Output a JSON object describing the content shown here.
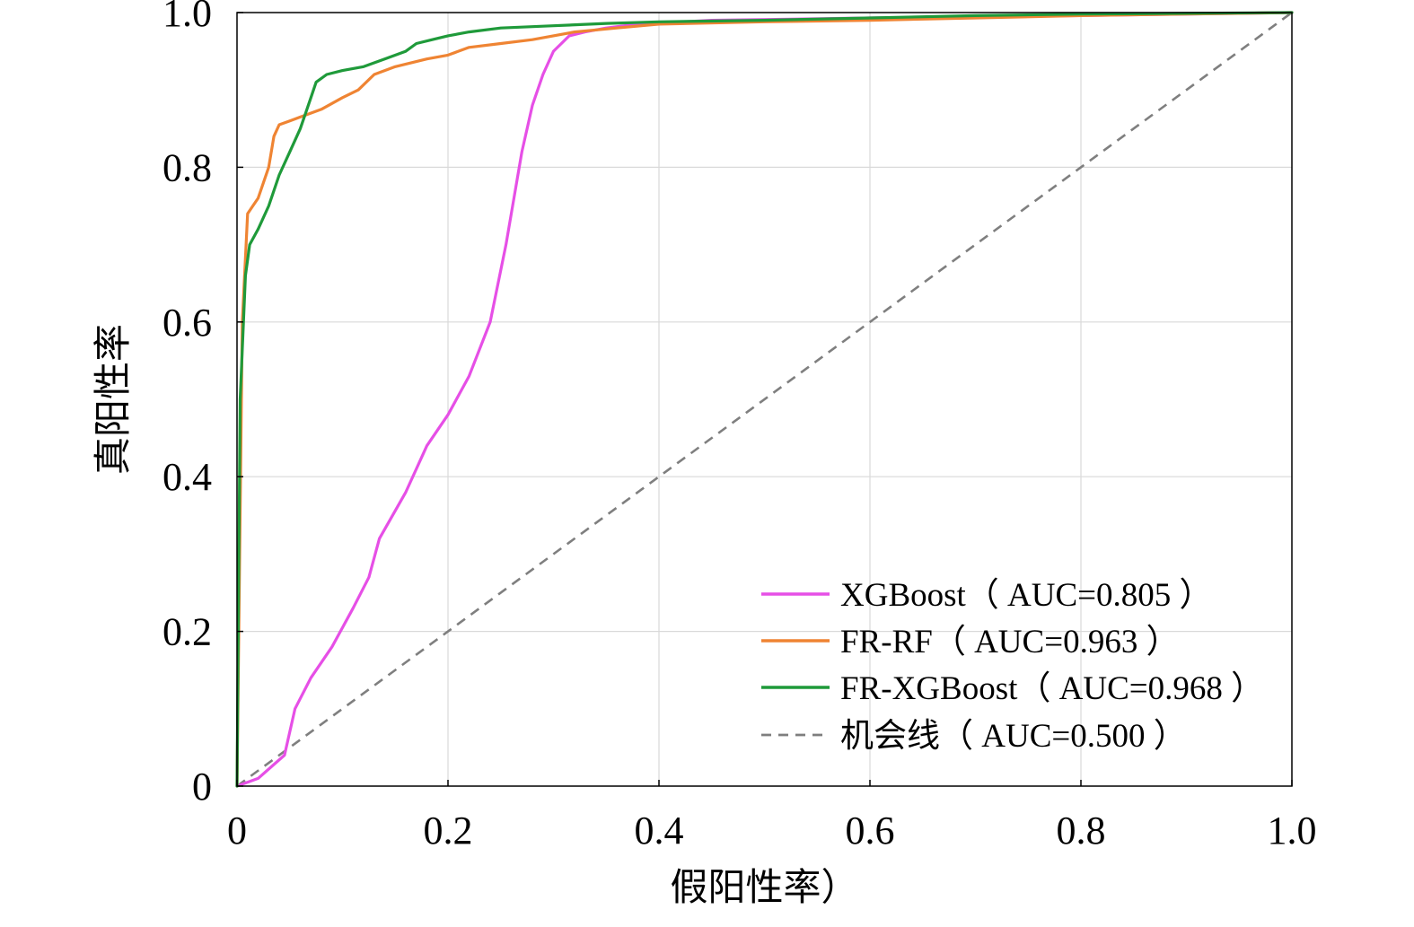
{
  "chart_data": {
    "type": "line",
    "xlabel": "假阳性率）",
    "ylabel": "真阳性率",
    "xlim": [
      0,
      1.0
    ],
    "ylim": [
      0,
      1.0
    ],
    "x_ticks": [
      0,
      0.2,
      0.4,
      0.6,
      0.8,
      1.0
    ],
    "y_ticks": [
      0,
      0.2,
      0.4,
      0.6,
      0.8,
      1.0
    ],
    "x_tick_labels": [
      "0",
      "0.2",
      "0.4",
      "0.6",
      "0.8",
      "1.0"
    ],
    "y_tick_labels": [
      "0",
      "0.2",
      "0.4",
      "0.6",
      "0.8",
      "1.0"
    ],
    "grid": true,
    "legend_position": "bottom-right",
    "series": [
      {
        "name": "XGBoost（ AUC=0.805 ）",
        "color": "#e64fe6",
        "dash": "solid",
        "x": [
          0,
          0.02,
          0.045,
          0.055,
          0.07,
          0.09,
          0.11,
          0.125,
          0.135,
          0.16,
          0.18,
          0.2,
          0.22,
          0.24,
          0.255,
          0.265,
          0.27,
          0.28,
          0.29,
          0.3,
          0.315,
          0.33,
          0.35,
          0.38,
          0.45,
          0.6,
          0.8,
          1.0
        ],
        "y": [
          0,
          0.01,
          0.04,
          0.1,
          0.14,
          0.18,
          0.23,
          0.27,
          0.32,
          0.38,
          0.44,
          0.48,
          0.53,
          0.6,
          0.7,
          0.78,
          0.82,
          0.88,
          0.92,
          0.95,
          0.97,
          0.975,
          0.98,
          0.985,
          0.99,
          0.993,
          0.996,
          1.0
        ]
      },
      {
        "name": "FR-RF（ AUC=0.963 ）",
        "color": "#ef8433",
        "dash": "solid",
        "x": [
          0,
          0.005,
          0.01,
          0.015,
          0.02,
          0.025,
          0.03,
          0.035,
          0.04,
          0.05,
          0.06,
          0.08,
          0.1,
          0.115,
          0.13,
          0.15,
          0.18,
          0.2,
          0.22,
          0.25,
          0.28,
          0.32,
          0.36,
          0.4,
          0.5,
          0.6,
          0.7,
          0.8,
          0.9,
          1.0
        ],
        "y": [
          0,
          0.6,
          0.74,
          0.75,
          0.76,
          0.78,
          0.8,
          0.84,
          0.855,
          0.86,
          0.865,
          0.875,
          0.89,
          0.9,
          0.92,
          0.93,
          0.94,
          0.945,
          0.955,
          0.96,
          0.965,
          0.975,
          0.98,
          0.985,
          0.988,
          0.99,
          0.993,
          0.996,
          0.998,
          1.0
        ]
      },
      {
        "name": "FR-XGBoost（ AUC=0.968 ）",
        "color": "#1f9a3a",
        "dash": "solid",
        "x": [
          0,
          0.003,
          0.008,
          0.012,
          0.02,
          0.03,
          0.04,
          0.05,
          0.06,
          0.065,
          0.07,
          0.075,
          0.085,
          0.1,
          0.12,
          0.14,
          0.16,
          0.17,
          0.185,
          0.2,
          0.22,
          0.25,
          0.3,
          0.35,
          0.4,
          0.5,
          0.6,
          0.7,
          0.8,
          0.9,
          1.0
        ],
        "y": [
          0,
          0.5,
          0.66,
          0.7,
          0.72,
          0.75,
          0.79,
          0.82,
          0.85,
          0.87,
          0.89,
          0.91,
          0.92,
          0.925,
          0.93,
          0.94,
          0.95,
          0.96,
          0.965,
          0.97,
          0.975,
          0.98,
          0.983,
          0.986,
          0.988,
          0.99,
          0.993,
          0.996,
          0.998,
          0.999,
          1.0
        ]
      },
      {
        "name": "机会线（ AUC=0.500 ）",
        "color": "#7f7f7f",
        "dash": "dashed",
        "x": [
          0,
          1.0
        ],
        "y": [
          0,
          1.0
        ]
      }
    ]
  }
}
